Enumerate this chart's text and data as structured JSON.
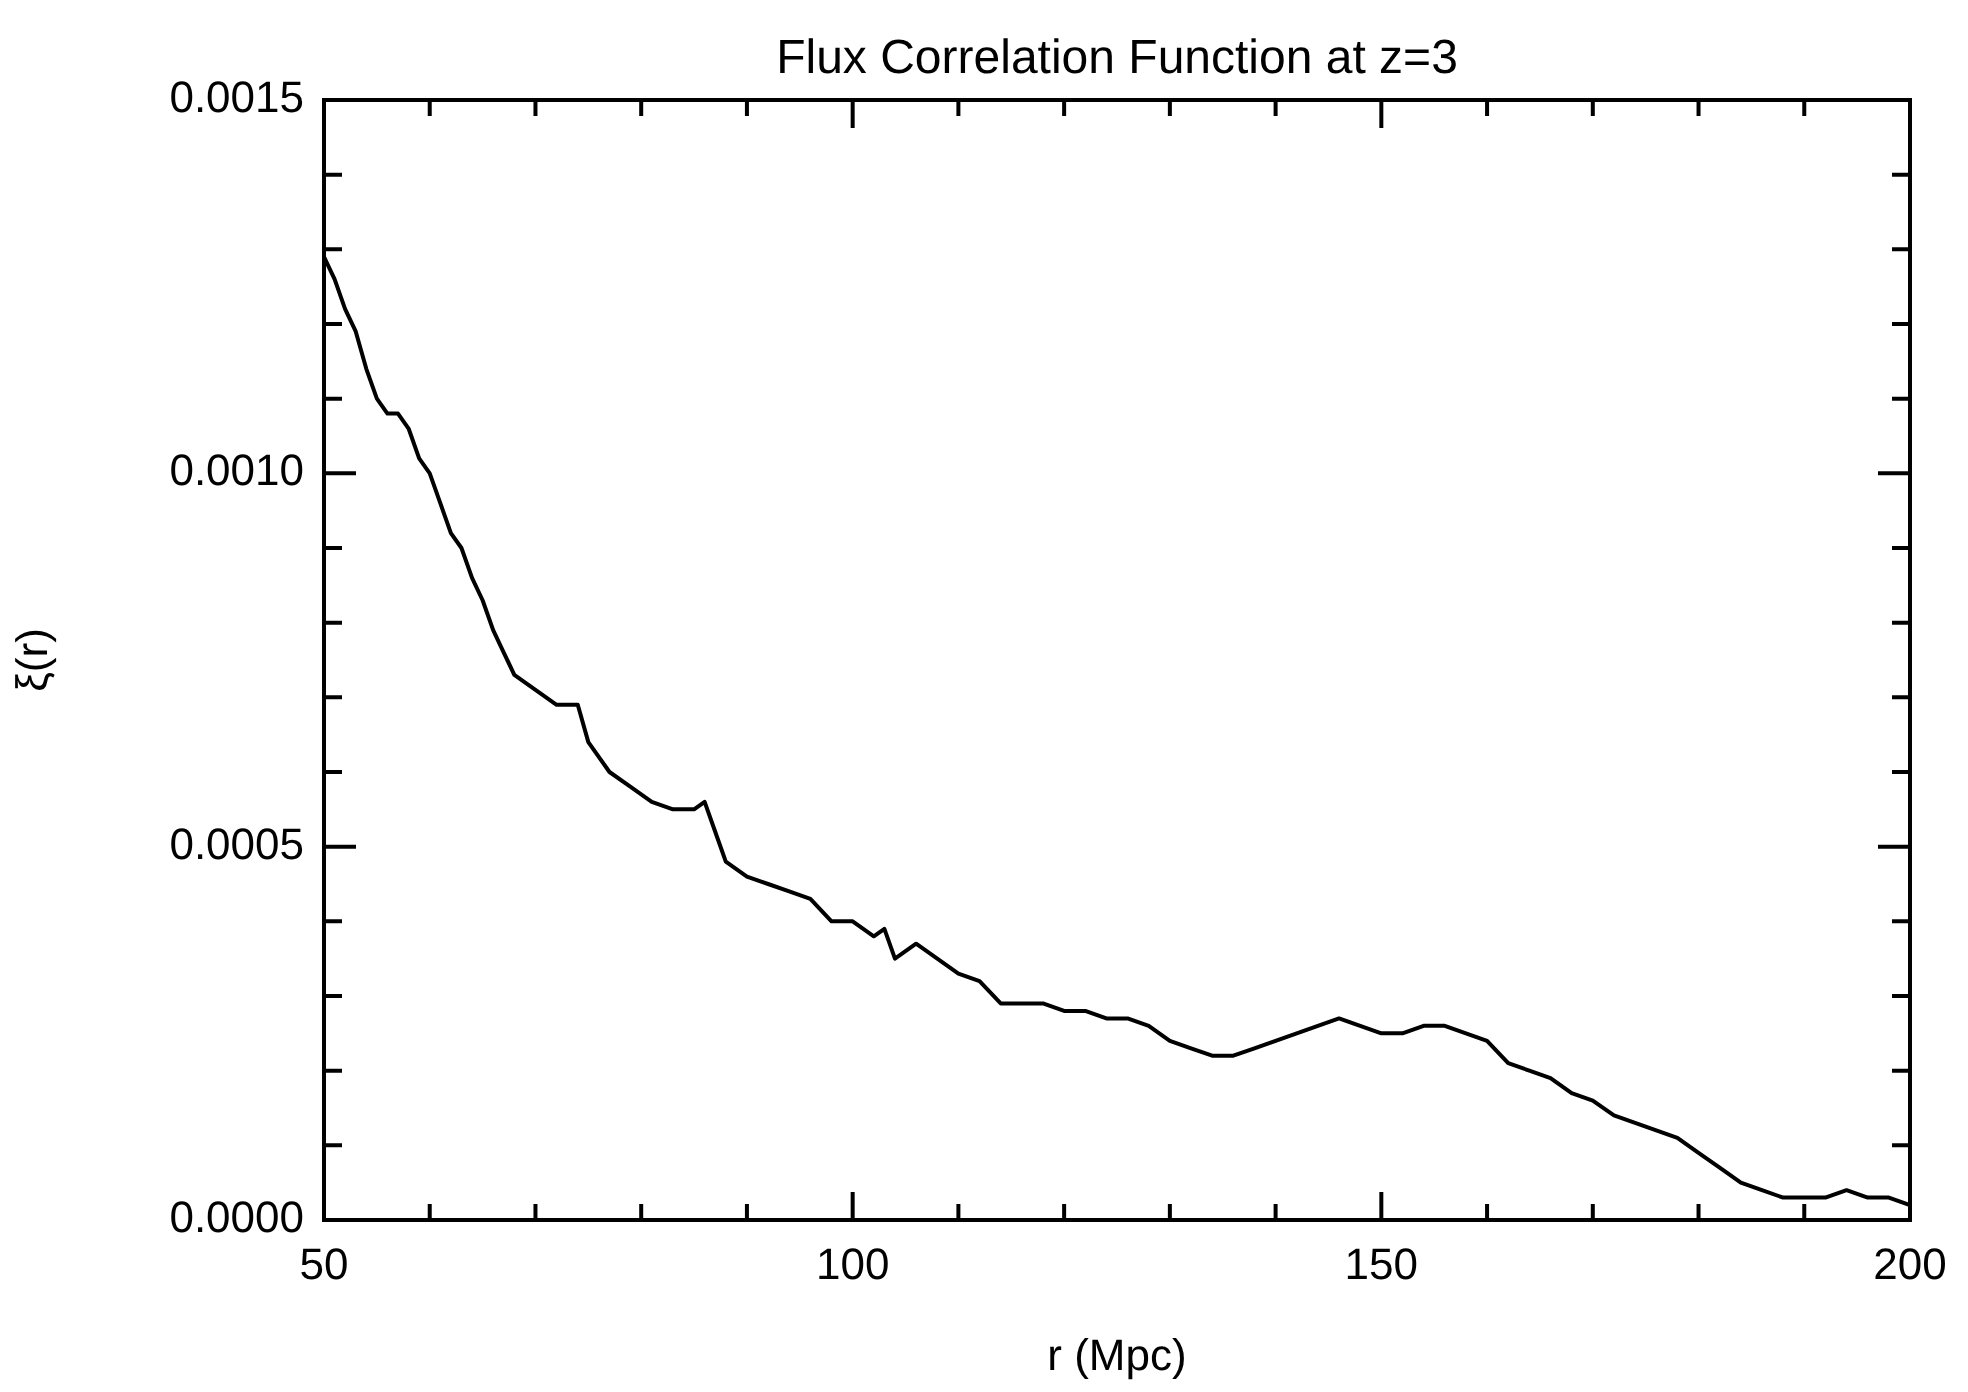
{
  "chart_data": {
    "type": "line",
    "title": "Flux Correlation Function at z=3",
    "xlabel": "r (Mpc)",
    "ylabel": "ξ(r)",
    "x": [
      50,
      51,
      52,
      53,
      54,
      55,
      56,
      57,
      58,
      59,
      60,
      61,
      62,
      63,
      64,
      65,
      66,
      67,
      68,
      70,
      72,
      74,
      75,
      77,
      79,
      81,
      83,
      85,
      86,
      87,
      88,
      90,
      92,
      94,
      96,
      98,
      100,
      102,
      103,
      104,
      106,
      108,
      110,
      112,
      114,
      116,
      118,
      120,
      122,
      124,
      126,
      128,
      130,
      132,
      134,
      136,
      138,
      140,
      142,
      144,
      146,
      148,
      150,
      152,
      154,
      156,
      158,
      160,
      162,
      164,
      166,
      168,
      170,
      172,
      174,
      176,
      178,
      180,
      182,
      184,
      186,
      188,
      190,
      192,
      194,
      196,
      198,
      200
    ],
    "series": [
      {
        "color": "#000000",
        "values": [
          0.00129,
          0.00126,
          0.00122,
          0.00119,
          0.00114,
          0.0011,
          0.00108,
          0.00108,
          0.00106,
          0.00102,
          0.001,
          0.00096,
          0.00092,
          0.0009,
          0.00086,
          0.00083,
          0.00079,
          0.00076,
          0.00073,
          0.00071,
          0.00069,
          0.00069,
          0.00064,
          0.0006,
          0.00058,
          0.00056,
          0.00055,
          0.00055,
          0.00056,
          0.00052,
          0.00048,
          0.00046,
          0.00045,
          0.00044,
          0.00043,
          0.0004,
          0.0004,
          0.00038,
          0.00039,
          0.00035,
          0.00037,
          0.00035,
          0.00033,
          0.00032,
          0.00029,
          0.00029,
          0.00029,
          0.00028,
          0.00028,
          0.00027,
          0.00027,
          0.00026,
          0.00024,
          0.00023,
          0.00022,
          0.00022,
          0.00023,
          0.00024,
          0.00025,
          0.00026,
          0.00027,
          0.00026,
          0.00025,
          0.00025,
          0.00026,
          0.00026,
          0.00025,
          0.00024,
          0.00021,
          0.0002,
          0.00019,
          0.00017,
          0.00016,
          0.00014,
          0.00013,
          0.00012,
          0.00011,
          9e-05,
          7e-05,
          5e-05,
          4e-05,
          3e-05,
          3e-05,
          3e-05,
          4e-05,
          3e-05,
          3e-05,
          2e-05
        ]
      }
    ],
    "xlim": [
      50,
      200
    ],
    "xticks": [
      50,
      {
        "value": 60,
        "label": null
      },
      {
        "value": 70,
        "label": null
      },
      {
        "value": 80,
        "label": null
      },
      {
        "value": 90,
        "label": null
      },
      100,
      {
        "value": 110,
        "label": null
      },
      {
        "value": 120,
        "label": null
      },
      {
        "value": 130,
        "label": null
      },
      {
        "value": 140,
        "label": null
      },
      150,
      {
        "value": 160,
        "label": null
      },
      {
        "value": 170,
        "label": null
      },
      {
        "value": 180,
        "label": null
      },
      {
        "value": 190,
        "label": null
      },
      200
    ],
    "ylim": [
      0,
      0.0015
    ],
    "yticks": [
      {
        "value": 0,
        "label": "0.0000"
      },
      {
        "value": 0.0001,
        "label": null
      },
      {
        "value": 0.0002,
        "label": null
      },
      {
        "value": 0.0003,
        "label": null
      },
      {
        "value": 0.0004,
        "label": null
      },
      {
        "value": 0.0005,
        "label": "0.0005"
      },
      {
        "value": 0.0006,
        "label": null
      },
      {
        "value": 0.0007,
        "label": null
      },
      {
        "value": 0.0008,
        "label": null
      },
      {
        "value": 0.0009,
        "label": null
      },
      {
        "value": 0.001,
        "label": "0.0010"
      },
      {
        "value": 0.0011,
        "label": null
      },
      {
        "value": 0.0012,
        "label": null
      },
      {
        "value": 0.0013,
        "label": null
      },
      {
        "value": 0.0014,
        "label": null
      },
      {
        "value": 0.0015,
        "label": "0.0015"
      }
    ],
    "grid": false,
    "legend": false,
    "marker": "none",
    "line_style": "solid"
  }
}
